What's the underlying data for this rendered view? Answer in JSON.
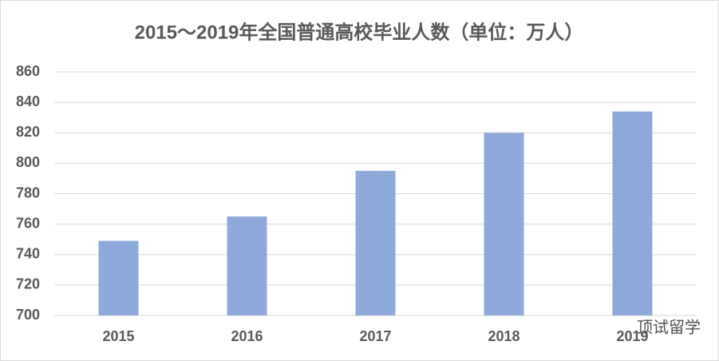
{
  "chart_data": {
    "type": "bar",
    "title": "2015～2019年全国普通高校毕业人数（单位：万人）",
    "categories": [
      "2015",
      "2016",
      "2017",
      "2018",
      "2019"
    ],
    "values": [
      749,
      765,
      795,
      820,
      834
    ],
    "color": "#8eaadb",
    "ylim": [
      700,
      860
    ],
    "yticks": [
      700,
      720,
      740,
      760,
      780,
      800,
      820,
      840,
      860
    ],
    "grid": true
  },
  "watermark": "顶试留学"
}
